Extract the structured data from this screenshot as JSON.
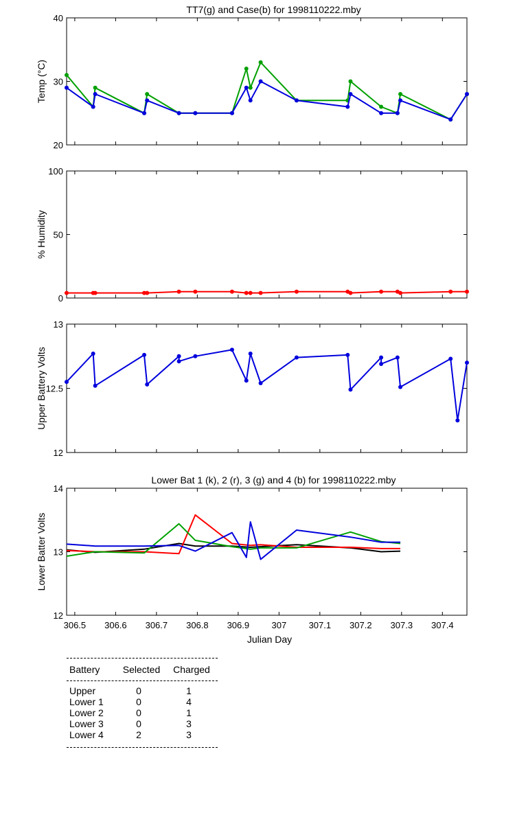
{
  "colors": {
    "green": "#00a000",
    "blue": "#0000dd",
    "red": "#ff0000",
    "black": "#000000"
  },
  "chart_data": [
    {
      "type": "line",
      "title": "TT7(g) and Case(b) for 1998110222.mby",
      "xlabel": "",
      "ylabel": "Temp  (°C)",
      "xlim": [
        306.48,
        307.46
      ],
      "ylim": [
        20,
        40
      ],
      "yticks": [
        "20",
        "30",
        "40"
      ],
      "markers": true,
      "series": [
        {
          "color": "green",
          "x": [
            306.48,
            306.545,
            306.55,
            306.67,
            306.677,
            306.755,
            306.795,
            306.885,
            306.92,
            306.93,
            306.955,
            307.043,
            307.168,
            307.175,
            307.25,
            307.29,
            307.297,
            307.42,
            307.46
          ],
          "y": [
            31,
            26,
            29,
            25,
            28,
            25,
            25,
            25,
            32,
            29,
            33,
            27,
            27,
            30,
            26,
            25,
            28,
            24,
            28
          ]
        },
        {
          "color": "blue",
          "x": [
            306.48,
            306.545,
            306.55,
            306.67,
            306.677,
            306.755,
            306.795,
            306.885,
            306.92,
            306.93,
            306.955,
            307.043,
            307.168,
            307.175,
            307.25,
            307.29,
            307.297,
            307.42,
            307.46
          ],
          "y": [
            29,
            26,
            28,
            25,
            27,
            25,
            25,
            25,
            29,
            27,
            30,
            27,
            26,
            28,
            25,
            25,
            27,
            24,
            28
          ]
        }
      ]
    },
    {
      "type": "line",
      "title": "",
      "xlabel": "",
      "ylabel": "% Humidity",
      "xlim": [
        306.48,
        307.46
      ],
      "ylim": [
        0,
        100
      ],
      "yticks": [
        "0",
        "50",
        "100"
      ],
      "markers": true,
      "series": [
        {
          "color": "red",
          "x": [
            306.48,
            306.545,
            306.55,
            306.67,
            306.677,
            306.755,
            306.795,
            306.885,
            306.92,
            306.93,
            306.955,
            307.043,
            307.168,
            307.175,
            307.25,
            307.29,
            307.297,
            307.42,
            307.46
          ],
          "y": [
            4,
            4,
            4,
            4,
            4,
            5,
            5,
            5,
            4,
            4,
            4,
            5,
            5,
            4,
            5,
            5,
            4,
            5,
            5
          ]
        }
      ]
    },
    {
      "type": "line",
      "title": "",
      "xlabel": "",
      "ylabel": "Upper Battery Volts",
      "xlim": [
        306.48,
        307.46
      ],
      "ylim": [
        12,
        13
      ],
      "yticks": [
        "12",
        "12.5",
        "13"
      ],
      "markers": true,
      "series": [
        {
          "color": "blue",
          "x": [
            306.48,
            306.545,
            306.55,
            306.67,
            306.677,
            306.755,
            306.755,
            306.795,
            306.885,
            306.92,
            306.93,
            306.955,
            307.043,
            307.168,
            307.175,
            307.25,
            307.25,
            307.29,
            307.297,
            307.42,
            307.437,
            307.46
          ],
          "y": [
            12.55,
            12.77,
            12.52,
            12.76,
            12.53,
            12.75,
            12.71,
            12.75,
            12.8,
            12.56,
            12.77,
            12.54,
            12.74,
            12.76,
            12.49,
            12.74,
            12.69,
            12.74,
            12.51,
            12.73,
            12.25,
            12.7
          ]
        }
      ]
    },
    {
      "type": "line",
      "title": "Lower Bat 1 (k), 2 (r), 3 (g) and 4 (b) for 1998110222.mby",
      "xlabel": "Julian Day",
      "ylabel": "Lower Batter Volts",
      "xlim": [
        306.48,
        307.46
      ],
      "ylim": [
        12,
        14
      ],
      "yticks": [
        "12",
        "13",
        "14"
      ],
      "xticks": [
        "306.5",
        "306.6",
        "306.7",
        "306.8",
        "306.9",
        "307",
        "307.1",
        "307.2",
        "307.3",
        "307.4"
      ],
      "markers": false,
      "series": [
        {
          "color": "black",
          "x": [
            306.48,
            306.55,
            306.67,
            306.755,
            306.795,
            306.885,
            306.93,
            306.955,
            307.043,
            307.175,
            307.25,
            307.297
          ],
          "y": [
            13.03,
            12.99,
            13.04,
            13.13,
            13.09,
            13.09,
            13.07,
            13.08,
            13.11,
            13.06,
            13.0,
            13.01
          ]
        },
        {
          "color": "red",
          "x": [
            306.48,
            306.55,
            306.67,
            306.755,
            306.795,
            306.885,
            306.93,
            306.955,
            307.043,
            307.175,
            307.25,
            307.297
          ],
          "y": [
            13.02,
            13.0,
            13.0,
            12.97,
            13.58,
            13.13,
            13.1,
            13.11,
            13.07,
            13.07,
            13.05,
            13.05
          ]
        },
        {
          "color": "green",
          "x": [
            306.48,
            306.55,
            306.67,
            306.755,
            306.795,
            306.885,
            306.93,
            306.955,
            307.043,
            307.175,
            307.25,
            307.297
          ],
          "y": [
            12.93,
            13.0,
            12.98,
            13.44,
            13.18,
            13.08,
            13.04,
            13.06,
            13.06,
            13.31,
            13.16,
            13.13
          ]
        },
        {
          "color": "blue",
          "x": [
            306.48,
            306.55,
            306.67,
            306.755,
            306.795,
            306.885,
            306.92,
            306.93,
            306.955,
            307.043,
            307.175,
            307.25,
            307.297
          ],
          "y": [
            13.12,
            13.09,
            13.09,
            13.1,
            13.01,
            13.3,
            12.91,
            13.47,
            12.88,
            13.34,
            13.23,
            13.15,
            13.15
          ]
        }
      ]
    }
  ],
  "battery_table": {
    "headers": [
      "Battery",
      "Selected",
      "Charged"
    ],
    "rows": [
      {
        "battery": "Upper",
        "selected": "0",
        "charged": "1"
      },
      {
        "battery": "Lower 1",
        "selected": "0",
        "charged": "4"
      },
      {
        "battery": "Lower 2",
        "selected": "0",
        "charged": "1"
      },
      {
        "battery": "Lower 3",
        "selected": "0",
        "charged": "3"
      },
      {
        "battery": "Lower 4",
        "selected": "2",
        "charged": "3"
      }
    ]
  }
}
